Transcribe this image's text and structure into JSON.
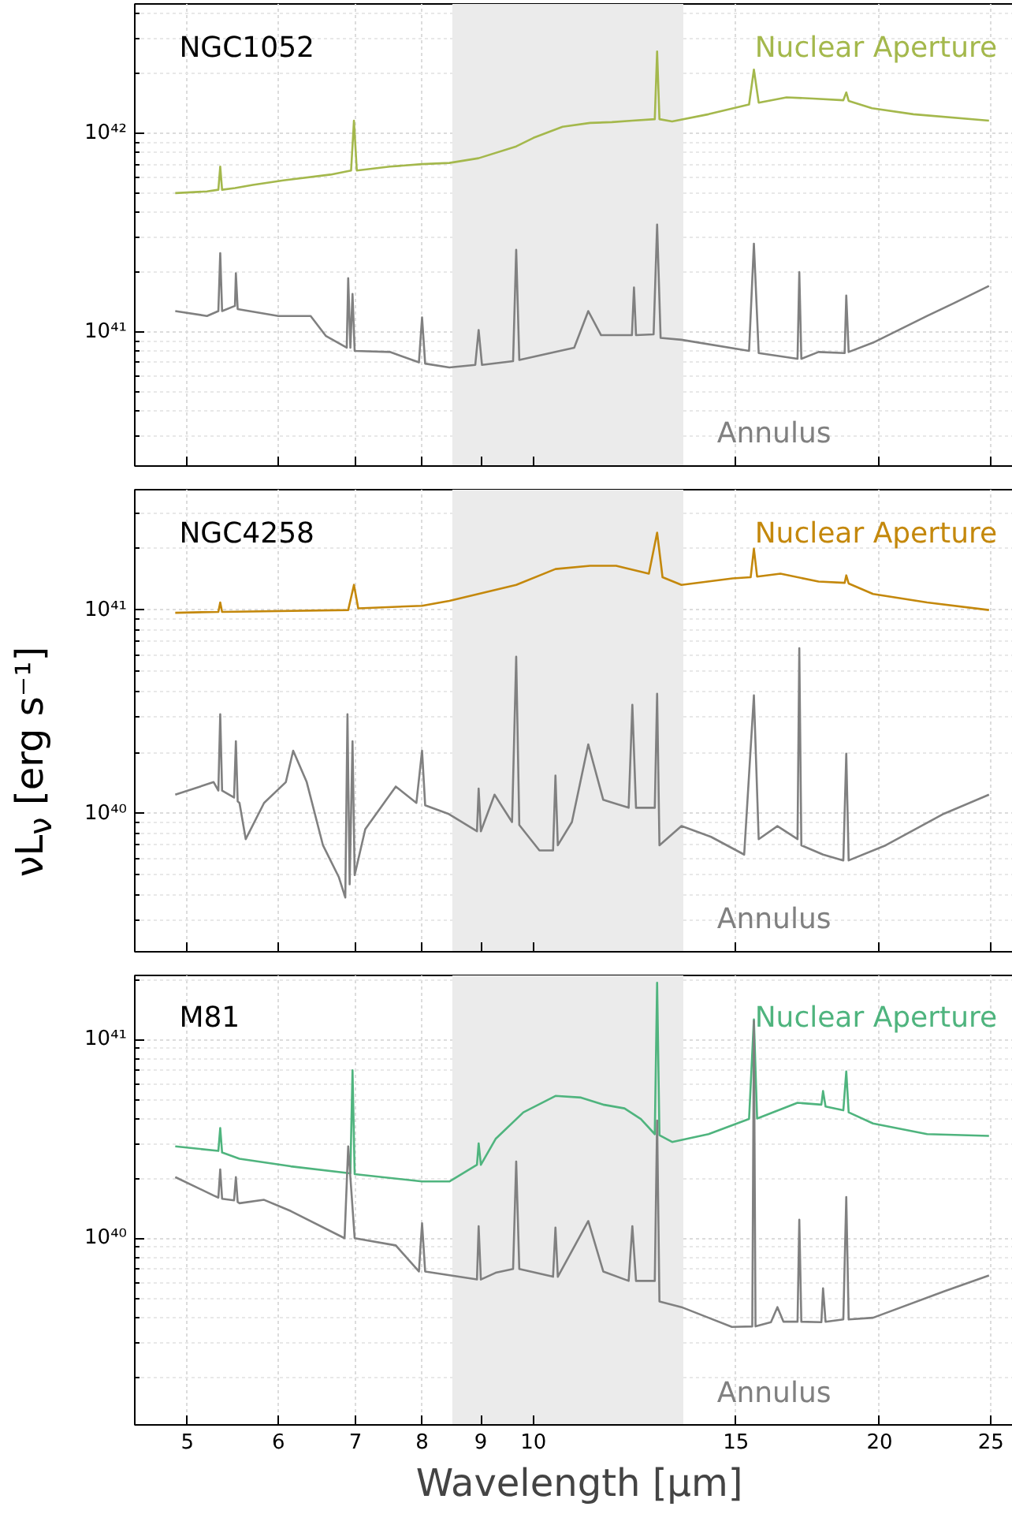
{
  "chart_data": [
    {
      "type": "line",
      "title": "NGC1052",
      "log": "xy",
      "grid": true,
      "tick_labels": "y",
      "xlim": [
        4.5,
        26.7
      ],
      "xticks": [
        5,
        6,
        7,
        8,
        9,
        10,
        15,
        20,
        25
      ],
      "ylim": [
        2.1e+40,
        4.5e+42
      ],
      "yticks": [
        {
          "value": 1e+41,
          "label": "10⁴¹"
        },
        {
          "value": 1e+42,
          "label": "10⁴²"
        }
      ],
      "bands": [
        {
          "axis": "x",
          "from": 8.5,
          "to": 13.5,
          "color": "#ebebeb"
        }
      ],
      "series": [
        {
          "name": "Nuclear Aperture",
          "color": "#a4b84c",
          "x": [
            4.88,
            5.2,
            5.32,
            5.34,
            5.36,
            5.5,
            5.7,
            6.06,
            6.66,
            6.94,
            6.98,
            7.02,
            7.5,
            8.0,
            8.45,
            8.96,
            9.66,
            10.0,
            10.6,
            11.2,
            11.7,
            12.19,
            12.75,
            12.81,
            12.87,
            13.2,
            14.2,
            15.4,
            15.55,
            15.7,
            16.6,
            17.5,
            18.6,
            18.71,
            18.8,
            19.7,
            21.4,
            24.9
          ],
          "values": [
            5e+41,
            5.1e+41,
            5.2e+41,
            6.8e+41,
            5.2e+41,
            5.3e+41,
            5.5e+41,
            5.8e+41,
            6.2e+41,
            6.5e+41,
            1.16e+42,
            6.5e+41,
            6.8e+41,
            7e+41,
            7.1e+41,
            7.5e+41,
            8.6e+41,
            9.5e+41,
            1.08e+42,
            1.13e+42,
            1.14e+42,
            1.16e+42,
            1.18e+42,
            2.59e+42,
            1.18e+42,
            1.15e+42,
            1.25e+42,
            1.4e+42,
            2.1e+42,
            1.43e+42,
            1.52e+42,
            1.5e+42,
            1.47e+42,
            1.61e+42,
            1.46e+42,
            1.34e+42,
            1.25e+42,
            1.16e+42
          ]
        },
        {
          "name": "Annulus",
          "color": "#808080",
          "x": [
            4.88,
            5.2,
            5.32,
            5.34,
            5.36,
            5.5,
            5.51,
            5.53,
            6.0,
            6.4,
            6.6,
            6.88,
            6.9,
            6.93,
            6.96,
            6.99,
            7.5,
            7.95,
            8.0,
            8.05,
            8.45,
            8.9,
            8.96,
            9.02,
            9.6,
            9.66,
            9.72,
            10.45,
            10.85,
            11.16,
            11.45,
            12.18,
            12.23,
            12.28,
            12.72,
            12.81,
            12.9,
            13.45,
            15.4,
            15.55,
            15.7,
            16.97,
            17.03,
            17.1,
            17.7,
            18.65,
            18.71,
            18.8,
            19.74,
            22.0,
            23.2,
            24.9
          ],
          "values": [
            1.27e+41,
            1.2e+41,
            1.27e+41,
            2.49e+41,
            1.27e+41,
            1.35e+41,
            1.97e+41,
            1.3e+41,
            1.2e+41,
            1.2e+41,
            9.5e+40,
            8.3e+40,
            1.86e+41,
            8.3e+40,
            1.55e+41,
            8e+40,
            7.9e+40,
            7e+40,
            1.18e+41,
            6.9e+40,
            6.6e+40,
            6.8e+40,
            1.02e+41,
            6.8e+40,
            7.1e+40,
            2.59e+41,
            7.2e+40,
            7.9e+40,
            8.3e+40,
            1.27e+41,
            9.6e+40,
            9.6e+40,
            1.67e+41,
            9.6e+40,
            9.7e+40,
            3.47e+41,
            9.3e+40,
            9.1e+40,
            8e+40,
            2.78e+41,
            7.8e+40,
            7.3e+40,
            2e+41,
            7.3e+40,
            7.9e+40,
            7.8e+40,
            1.52e+41,
            7.9e+40,
            8.8e+40,
            1.2e+41,
            1.39e+41,
            1.7e+41
          ]
        }
      ]
    },
    {
      "type": "line",
      "title": "NGC4258",
      "ylabel": "νL$_{ν}$ [erg s⁻¹]",
      "log": "xy",
      "grid": true,
      "tick_labels": "y",
      "xlim": [
        4.5,
        26.7
      ],
      "xticks": [
        5,
        6,
        7,
        8,
        9,
        10,
        15,
        20,
        25
      ],
      "ylim": [
        2.1e+39,
        3.9e+41
      ],
      "yticks": [
        {
          "value": 1e+40,
          "label": "10⁴⁰"
        },
        {
          "value": 1e+41,
          "label": "10⁴¹"
        }
      ],
      "bands": [
        {
          "axis": "x",
          "from": 8.5,
          "to": 13.5,
          "color": "#ebebeb"
        }
      ],
      "series": [
        {
          "name": "Nuclear Aperture",
          "color": "#c4880c",
          "x": [
            4.88,
            5.32,
            5.34,
            5.36,
            6.9,
            6.98,
            7.04,
            8.0,
            8.45,
            9.66,
            10.45,
            11.2,
            11.8,
            12.6,
            12.81,
            12.95,
            13.45,
            14.9,
            15.45,
            15.55,
            15.65,
            16.4,
            17.7,
            18.65,
            18.71,
            18.8,
            19.74,
            22.0,
            24.9
          ],
          "values": [
            9.7e+40,
            9.8e+40,
            1.09e+41,
            9.8e+40,
            1e+41,
            1.33e+41,
            1.02e+41,
            1.05e+41,
            1.11e+41,
            1.33e+41,
            1.59e+41,
            1.65e+41,
            1.65e+41,
            1.51e+41,
            2.4e+41,
            1.45e+41,
            1.33e+41,
            1.43e+41,
            1.45e+41,
            2e+41,
            1.46e+41,
            1.51e+41,
            1.38e+41,
            1.36e+41,
            1.48e+41,
            1.35e+41,
            1.2e+41,
            1.09e+41,
            1e+41
          ]
        },
        {
          "name": "Annulus",
          "color": "#808080",
          "x": [
            4.88,
            5.27,
            5.32,
            5.34,
            5.36,
            5.49,
            5.51,
            5.53,
            5.55,
            5.62,
            5.83,
            6.09,
            6.18,
            6.35,
            6.56,
            6.77,
            6.86,
            6.89,
            6.92,
            6.96,
            6.99,
            7.14,
            7.59,
            7.91,
            8.0,
            8.05,
            8.43,
            8.93,
            8.96,
            9.0,
            9.25,
            9.58,
            9.66,
            9.72,
            10.12,
            10.4,
            10.45,
            10.5,
            10.8,
            11.16,
            11.5,
            12.1,
            12.19,
            12.28,
            12.75,
            12.81,
            12.87,
            13.45,
            14.27,
            15.25,
            15.55,
            15.7,
            16.3,
            16.97,
            17.03,
            17.1,
            17.86,
            18.6,
            18.71,
            18.8,
            20.25,
            22.75,
            24.9
          ],
          "values": [
            1.24e+40,
            1.43e+40,
            1.3e+40,
            3.08e+40,
            1.3e+40,
            1.2e+40,
            2.27e+40,
            1.15e+40,
            1.13e+40,
            7.5e+39,
            1.13e+40,
            1.43e+40,
            2.04e+40,
            1.43e+40,
            7e+39,
            4.9e+39,
            3.88e+39,
            3.08e+40,
            4.5e+39,
            2.27e+40,
            5e+39,
            8.4e+39,
            1.36e+40,
            1.13e+40,
            2.04e+40,
            1.1e+40,
            1e+40,
            8.2e+39,
            1.33e+40,
            8.2e+39,
            1.24e+40,
            9.1e+39,
            5.9e+40,
            8.8e+39,
            6.6e+39,
            6.6e+39,
            1.54e+40,
            7e+39,
            9.1e+39,
            2.19e+40,
            1.17e+40,
            1.07e+40,
            3.43e+40,
            1.07e+40,
            1.07e+40,
            3.88e+40,
            7e+39,
            8.7e+39,
            7.7e+39,
            6.3e+39,
            3.81e+40,
            7.5e+39,
            8.7e+39,
            7.5e+39,
            6.5e+40,
            7e+39,
            6.3e+39,
            5.9e+39,
            1.97e+40,
            5.9e+39,
            7e+39,
            1e+40,
            1.24e+40
          ]
        }
      ]
    },
    {
      "type": "line",
      "title": "M81",
      "xlabel": "Wavelength [μm]",
      "log": "xy",
      "grid": true,
      "xlim": [
        4.5,
        26.7
      ],
      "xticks": [
        5,
        6,
        7,
        8,
        9,
        10,
        15,
        20,
        25
      ],
      "ylim": [
        1.15e+39,
        2.1e+41
      ],
      "yticks": [
        {
          "value": 1e+40,
          "label": "10⁴⁰"
        },
        {
          "value": 1e+41,
          "label": "10⁴¹"
        }
      ],
      "bands": [
        {
          "axis": "x",
          "from": 8.5,
          "to": 13.5,
          "color": "#ebebeb"
        }
      ],
      "series": [
        {
          "name": "Nuclear Aperture",
          "color": "#4fb47e",
          "x": [
            4.88,
            5.32,
            5.34,
            5.36,
            5.55,
            6.15,
            6.93,
            6.96,
            6.99,
            8.0,
            8.45,
            8.93,
            8.96,
            9.0,
            9.27,
            9.8,
            10.45,
            11.0,
            11.5,
            12.0,
            12.4,
            12.75,
            12.81,
            12.87,
            13.2,
            14.2,
            15.4,
            15.55,
            15.65,
            16.97,
            17.8,
            17.86,
            17.95,
            18.6,
            18.71,
            18.8,
            19.74,
            22.0,
            24.9
          ],
          "values": [
            2.9e+40,
            2.75e+40,
            3.58e+40,
            2.7e+40,
            2.51e+40,
            2.3e+40,
            2.12e+40,
            7e+40,
            2.1e+40,
            1.93e+40,
            1.93e+40,
            2.34e+40,
            3e+40,
            2.34e+40,
            3.16e+40,
            4.3e+40,
            5.2e+40,
            5.1e+40,
            4.7e+40,
            4.5e+40,
            3.98e+40,
            3.34e+40,
            1.93e+41,
            3.3e+40,
            3.05e+40,
            3.34e+40,
            3.98e+40,
            1.26e+41,
            4e+40,
            4.8e+40,
            4.7e+40,
            5.5e+40,
            4.6e+40,
            4.4e+40,
            6.9e+40,
            4.3e+40,
            3.78e+40,
            3.34e+40,
            3.27e+40
          ]
        },
        {
          "name": "Annulus",
          "color": "#808080",
          "x": [
            4.88,
            5.27,
            5.32,
            5.34,
            5.36,
            5.49,
            5.51,
            5.53,
            5.55,
            5.83,
            6.15,
            6.85,
            6.9,
            6.99,
            7.59,
            7.95,
            8.0,
            8.05,
            8.93,
            8.96,
            9.0,
            9.27,
            9.6,
            9.66,
            9.72,
            10.4,
            10.45,
            10.5,
            11.16,
            11.5,
            12.1,
            12.19,
            12.28,
            12.75,
            12.81,
            12.87,
            13.45,
            14.2,
            14.88,
            15.5,
            15.55,
            15.6,
            16.09,
            16.3,
            16.5,
            16.97,
            17.03,
            17.1,
            17.8,
            17.86,
            17.95,
            18.6,
            18.71,
            18.8,
            19.74,
            22.75,
            24.9
          ],
          "values": [
            2.03e+40,
            1.64e+40,
            1.6e+40,
            2.22e+40,
            1.58e+40,
            1.55e+40,
            2.03e+40,
            1.52e+40,
            1.5e+40,
            1.56e+40,
            1.37e+40,
            1e+40,
            2.9e+40,
            1e+40,
            9.2e+39,
            6.8e+39,
            1.19e+40,
            6.8e+39,
            6.2e+39,
            1.15e+40,
            6.2e+39,
            6.7e+39,
            7e+39,
            2.43e+40,
            7e+39,
            6.4e+39,
            1.13e+40,
            6.4e+39,
            1.22e+40,
            6.8e+39,
            6.1e+39,
            1.15e+40,
            6.1e+39,
            6.1e+39,
            3.91e+40,
            4.8e+39,
            4.5e+39,
            3.98e+39,
            3.58e+39,
            3.6e+39,
            1.24e+41,
            3.6e+39,
            3.78e+39,
            4.5e+39,
            3.8e+39,
            3.8e+39,
            1.24e+40,
            3.8e+39,
            3.78e+39,
            5.6e+39,
            3.8e+39,
            3.9e+39,
            1.61e+40,
            3.9e+39,
            3.98e+39,
            5.4e+39,
            6.5e+39
          ]
        }
      ]
    }
  ]
}
